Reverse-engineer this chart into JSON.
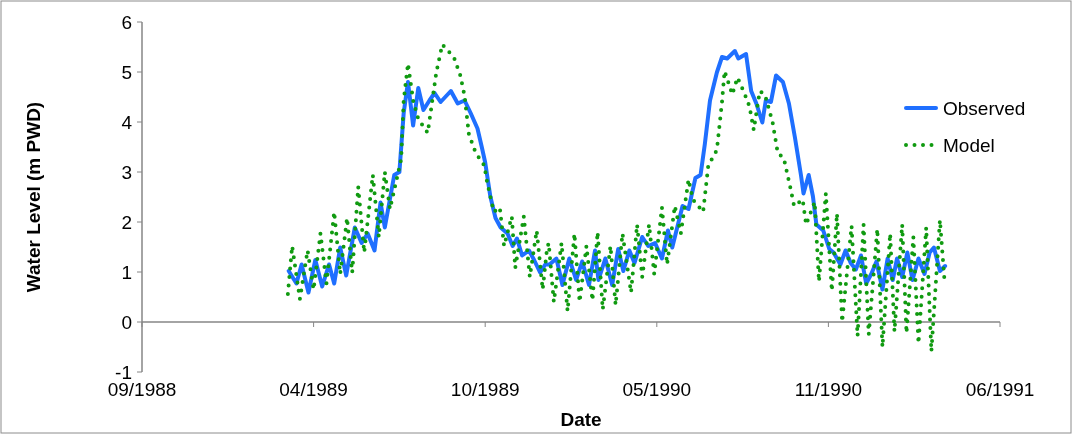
{
  "chart_data": {
    "type": "line",
    "xlabel": "Date",
    "ylabel": "Water Level (m PWD)",
    "xlim": [
      "1988-09-15",
      "1991-06-12"
    ],
    "xticks": [
      {
        "value": "1988-09-15",
        "label": "09/1988"
      },
      {
        "value": "1989-04-03",
        "label": "04/1989"
      },
      {
        "value": "1989-10-20",
        "label": "10/1989"
      },
      {
        "value": "1990-05-08",
        "label": "05/1990"
      },
      {
        "value": "1990-11-24",
        "label": "11/1990"
      },
      {
        "value": "1991-06-12",
        "label": "06/1991"
      }
    ],
    "ylim": [
      -1,
      6
    ],
    "yticks": [
      -1,
      0,
      1,
      2,
      3,
      4,
      5,
      6
    ],
    "legend": "top right",
    "series": [
      {
        "name": "Observed",
        "color": "#1f6fff",
        "line_style": "solid",
        "x": [
          "1989-03-05",
          "1989-03-14",
          "1989-03-20",
          "1989-03-28",
          "1989-04-05",
          "1989-04-13",
          "1989-04-21",
          "1989-04-27",
          "1989-05-04",
          "1989-05-11",
          "1989-05-21",
          "1989-05-29",
          "1989-06-05",
          "1989-06-13",
          "1989-06-20",
          "1989-06-25",
          "1989-07-06",
          "1989-07-12",
          "1989-07-17",
          "1989-07-22",
          "1989-07-28",
          "1989-08-03",
          "1989-08-09",
          "1989-08-16",
          "1989-08-22",
          "1989-08-29",
          "1989-09-10",
          "1989-09-18",
          "1989-09-26",
          "1989-10-03",
          "1989-10-11",
          "1989-10-16",
          "1989-10-20",
          "1989-10-26",
          "1989-11-01",
          "1989-11-07",
          "1989-11-15",
          "1989-11-21",
          "1989-11-26",
          "1989-12-02",
          "1989-12-10",
          "1989-12-16",
          "1989-12-23",
          "1989-12-29",
          "1990-01-03",
          "1990-01-11",
          "1990-01-18",
          "1990-01-26",
          "1990-02-03",
          "1990-02-10",
          "1990-02-18",
          "1990-02-25",
          "1990-03-01",
          "1990-03-09",
          "1990-03-17",
          "1990-03-24",
          "1990-03-30",
          "1990-04-06",
          "1990-04-12",
          "1990-04-21",
          "1990-04-28",
          "1990-05-06",
          "1990-05-14",
          "1990-05-21",
          "1990-05-26",
          "1990-06-07",
          "1990-06-14",
          "1990-06-22",
          "1990-06-28",
          "1990-07-03",
          "1990-07-09",
          "1990-07-17",
          "1990-07-23",
          "1990-07-29",
          "1990-08-07",
          "1990-08-11",
          "1990-08-20",
          "1990-08-26",
          "1990-09-01",
          "1990-09-08",
          "1990-09-12",
          "1990-09-18",
          "1990-09-24",
          "1990-10-02",
          "1990-10-09",
          "1990-10-16",
          "1990-10-23",
          "1990-10-26",
          "1990-11-01",
          "1990-11-06",
          "1990-11-10",
          "1990-11-18",
          "1990-11-25",
          "1990-11-30",
          "1990-12-08",
          "1990-12-14",
          "1990-12-20",
          "1990-12-26",
          "1991-01-01",
          "1991-01-07",
          "1991-01-13",
          "1991-01-19",
          "1991-01-26",
          "1991-02-01",
          "1991-02-07",
          "1991-02-12",
          "1991-02-18",
          "1991-02-24",
          "1991-03-02",
          "1991-03-09",
          "1991-03-16",
          "1991-03-22",
          "1991-03-27",
          "1991-04-03",
          "1991-04-09"
        ],
        "values": [
          1.02,
          0.77,
          1.15,
          0.59,
          1.24,
          0.71,
          1.15,
          0.77,
          1.49,
          0.93,
          1.89,
          1.58,
          1.77,
          1.43,
          2.39,
          1.89,
          2.94,
          3.0,
          4.18,
          4.8,
          3.93,
          4.68,
          4.24,
          4.43,
          4.58,
          4.4,
          4.62,
          4.37,
          4.43,
          4.18,
          3.87,
          3.5,
          3.19,
          2.51,
          2.08,
          1.89,
          1.77,
          1.52,
          1.67,
          1.33,
          1.43,
          1.24,
          0.99,
          1.15,
          1.15,
          1.27,
          0.74,
          1.27,
          0.84,
          1.21,
          0.74,
          1.43,
          0.84,
          1.27,
          0.74,
          1.46,
          1.02,
          1.43,
          1.18,
          1.7,
          1.52,
          1.58,
          1.27,
          1.83,
          1.49,
          2.32,
          2.26,
          2.88,
          2.94,
          3.56,
          4.43,
          4.99,
          5.3,
          5.27,
          5.42,
          5.27,
          5.36,
          4.62,
          4.37,
          3.99,
          4.43,
          4.4,
          4.93,
          4.8,
          4.37,
          3.69,
          2.94,
          2.57,
          2.94,
          2.51,
          1.95,
          1.83,
          1.46,
          1.39,
          1.15,
          1.43,
          1.18,
          1.05,
          1.33,
          0.77,
          0.96,
          1.21,
          0.65,
          1.27,
          0.84,
          1.27,
          0.9,
          1.39,
          0.84,
          1.27,
          0.96,
          1.39,
          1.49,
          1.02,
          1.12
        ]
      },
      {
        "name": "Model",
        "color": "#109a10",
        "line_style": "dotted",
        "x": [
          "1989-03-04",
          "1989-03-09",
          "1989-03-18",
          "1989-03-27",
          "1989-04-03",
          "1989-04-11",
          "1989-04-18",
          "1989-04-27",
          "1989-05-04",
          "1989-05-12",
          "1989-05-18",
          "1989-05-25",
          "1989-06-01",
          "1989-06-11",
          "1989-06-18",
          "1989-06-25",
          "1989-07-01",
          "1989-07-14",
          "1989-07-17",
          "1989-07-22",
          "1989-07-28",
          "1989-08-03",
          "1989-08-14",
          "1989-08-24",
          "1989-08-31",
          "1989-09-07",
          "1989-09-14",
          "1989-09-21",
          "1989-09-26",
          "1989-10-01",
          "1989-10-09",
          "1989-10-19",
          "1989-10-22",
          "1989-10-30",
          "1989-11-06",
          "1989-11-11",
          "1989-11-20",
          "1989-11-24",
          "1989-12-04",
          "1989-12-11",
          "1989-12-19",
          "1989-12-26",
          "1989-12-31",
          "1990-01-02",
          "1990-01-08",
          "1990-01-17",
          "1990-01-24",
          "1990-02-01",
          "1990-02-07",
          "1990-02-15",
          "1990-02-22",
          "1990-02-28",
          "1990-03-06",
          "1990-03-15",
          "1990-03-21",
          "1990-03-29",
          "1990-04-08",
          "1990-04-15",
          "1990-04-21",
          "1990-04-29",
          "1990-05-05",
          "1990-05-14",
          "1990-05-20",
          "1990-05-29",
          "1990-06-05",
          "1990-06-14",
          "1990-06-19",
          "1990-07-01",
          "1990-07-07",
          "1990-07-17",
          "1990-07-23",
          "1990-07-26",
          "1990-08-04",
          "1990-08-10",
          "1990-08-18",
          "1990-08-24",
          "1990-08-29",
          "1990-09-05",
          "1990-09-11",
          "1990-09-20",
          "1990-09-26",
          "1990-10-03",
          "1990-10-11",
          "1990-10-15",
          "1990-10-25",
          "1990-10-29",
          "1990-11-08",
          "1990-11-13",
          "1990-11-21",
          "1990-11-28",
          "1990-12-04",
          "1990-12-10",
          "1990-12-21",
          "1990-12-28",
          "1991-01-04",
          "1991-01-10",
          "1991-01-20",
          "1991-01-26",
          "1991-02-04",
          "1991-02-09",
          "1991-02-18",
          "1991-02-23",
          "1991-03-03",
          "1991-03-09",
          "1991-03-18",
          "1991-03-24",
          "1991-04-03",
          "1991-04-08"
        ],
        "values": [
          0.56,
          1.52,
          0.46,
          1.43,
          0.65,
          1.77,
          0.77,
          2.2,
          0.96,
          2.08,
          0.99,
          2.7,
          1.39,
          2.94,
          1.7,
          3.0,
          2.26,
          3.25,
          4.43,
          5.17,
          4.43,
          4.06,
          3.78,
          4.99,
          5.55,
          5.42,
          5.27,
          4.93,
          4.52,
          3.75,
          3.38,
          3.13,
          2.82,
          2.2,
          2.29,
          1.52,
          2.11,
          1.08,
          2.11,
          0.9,
          1.83,
          0.65,
          1.46,
          1.58,
          0.4,
          1.58,
          0.22,
          1.77,
          0.4,
          1.52,
          0.43,
          1.8,
          0.25,
          1.52,
          0.34,
          1.77,
          0.59,
          1.95,
          0.9,
          1.95,
          0.96,
          2.29,
          1.15,
          2.32,
          1.77,
          2.85,
          2.45,
          2.2,
          3.13,
          3.44,
          4.4,
          5.02,
          4.55,
          4.89,
          4.58,
          4.31,
          3.84,
          4.62,
          4.55,
          3.99,
          3.38,
          3.28,
          2.66,
          2.32,
          2.45,
          1.95,
          2.4,
          0.81,
          2.57,
          0.62,
          2.17,
          0,
          1.92,
          -0.28,
          1.95,
          -0.25,
          1.86,
          -0.5,
          1.77,
          -0.19,
          1.95,
          -0.22,
          1.7,
          -0.43,
          1.89,
          -0.59,
          2.04,
          0.9
        ]
      }
    ]
  }
}
